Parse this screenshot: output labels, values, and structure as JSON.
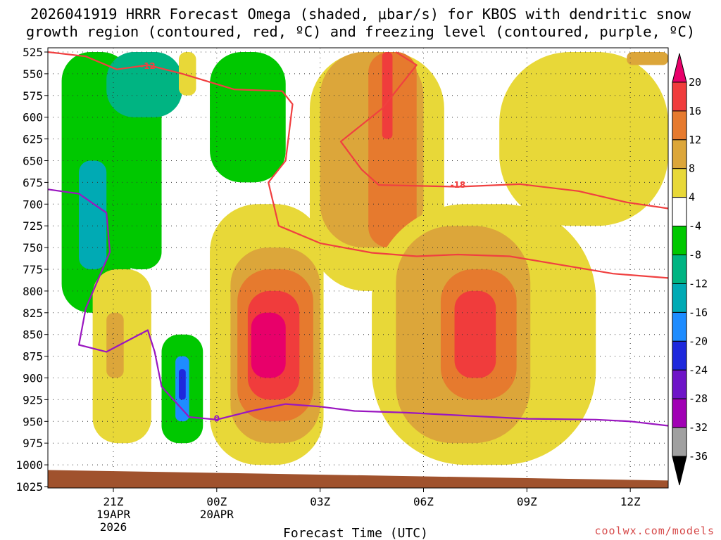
{
  "chart_data": {
    "type": "heatmap",
    "title_line1": "2026041919 HRRR Forecast Omega (shaded, μbar/s) for KBOS with dendritic snow",
    "title_line2": "growth region (contoured, red, ºC) and freezing level (contoured, purple, ºC)",
    "xlabel": "Forecast Time (UTC)",
    "credit": "coolwx.com/models",
    "y_levels_hpa": [
      525,
      550,
      575,
      600,
      625,
      650,
      675,
      700,
      725,
      750,
      775,
      800,
      825,
      850,
      875,
      900,
      925,
      950,
      975,
      1000,
      1025
    ],
    "x_range_hours": [
      -4.9,
      13.1
    ],
    "x_ticks": [
      {
        "hour": -3,
        "label": "21Z",
        "sub1": "19APR",
        "sub2": "2026"
      },
      {
        "hour": 0,
        "label": "00Z",
        "sub1": "20APR",
        "sub2": ""
      },
      {
        "hour": 3,
        "label": "03Z",
        "sub1": "",
        "sub2": ""
      },
      {
        "hour": 6,
        "label": "06Z",
        "sub1": "",
        "sub2": ""
      },
      {
        "hour": 9,
        "label": "09Z",
        "sub1": "",
        "sub2": ""
      },
      {
        "hour": 12,
        "label": "12Z",
        "sub1": "",
        "sub2": ""
      }
    ],
    "colorbar": {
      "labels": [
        "20",
        "16",
        "12",
        "8",
        "4",
        "-4",
        "-8",
        "-12",
        "-16",
        "-20",
        "-24",
        "-28",
        "-32",
        "-36"
      ],
      "colors": [
        "#e8006a",
        "#f03c3c",
        "#e67a2e",
        "#dca63a",
        "#e8d838",
        "#ffffff",
        "#00c800",
        "#00b482",
        "#00aab4",
        "#1e8cff",
        "#1e28dc",
        "#6e14c8",
        "#a000b4",
        "#a0a0a0",
        "#000000"
      ]
    },
    "omega_regions": [
      {
        "color": "#00c800",
        "hours": [
          -4.5,
          -2.5
        ],
        "hpa": [
          525,
          825
        ]
      },
      {
        "color": "#00c800",
        "hours": [
          -2.8,
          -1.6
        ],
        "hpa": [
          525,
          775
        ]
      },
      {
        "color": "#00c800",
        "hours": [
          -0.2,
          2.0
        ],
        "hpa": [
          525,
          675
        ]
      },
      {
        "color": "#00b482",
        "hours": [
          -3.2,
          -1.0
        ],
        "hpa": [
          525,
          600
        ]
      },
      {
        "color": "#00aab4",
        "hours": [
          -4.0,
          -3.2
        ],
        "hpa": [
          650,
          775
        ]
      },
      {
        "color": "#e8d838",
        "hours": [
          -0.2,
          3.1
        ],
        "hpa": [
          700,
          1000
        ]
      },
      {
        "color": "#dca63a",
        "hours": [
          0.4,
          3.0
        ],
        "hpa": [
          750,
          975
        ]
      },
      {
        "color": "#e67a2e",
        "hours": [
          0.6,
          2.8
        ],
        "hpa": [
          775,
          950
        ]
      },
      {
        "color": "#f03c3c",
        "hours": [
          0.9,
          2.4
        ],
        "hpa": [
          800,
          925
        ]
      },
      {
        "color": "#e8006a",
        "hours": [
          1.0,
          2.0
        ],
        "hpa": [
          825,
          900
        ]
      },
      {
        "color": "#e8d838",
        "hours": [
          2.7,
          6.6
        ],
        "hpa": [
          525,
          800
        ]
      },
      {
        "color": "#dca63a",
        "hours": [
          3.0,
          6.0
        ],
        "hpa": [
          525,
          750
        ]
      },
      {
        "color": "#e67a2e",
        "hours": [
          4.4,
          5.8
        ],
        "hpa": [
          525,
          750
        ]
      },
      {
        "color": "#f03c3c",
        "hours": [
          4.8,
          5.1
        ],
        "hpa": [
          525,
          625
        ]
      },
      {
        "color": "#e8d838",
        "hours": [
          4.5,
          11.0
        ],
        "hpa": [
          700,
          1000
        ]
      },
      {
        "color": "#dca63a",
        "hours": [
          5.2,
          9.1
        ],
        "hpa": [
          725,
          975
        ]
      },
      {
        "color": "#e67a2e",
        "hours": [
          6.5,
          8.7
        ],
        "hpa": [
          775,
          925
        ]
      },
      {
        "color": "#f03c3c",
        "hours": [
          6.9,
          8.1
        ],
        "hpa": [
          800,
          900
        ]
      },
      {
        "color": "#e8d838",
        "hours": [
          8.2,
          13.1
        ],
        "hpa": [
          525,
          725
        ]
      },
      {
        "color": "#dca63a",
        "hours": [
          11.9,
          13.1
        ],
        "hpa": [
          525,
          540
        ]
      },
      {
        "color": "#e8d838",
        "hours": [
          -3.6,
          -1.9
        ],
        "hpa": [
          775,
          975
        ]
      },
      {
        "color": "#dca63a",
        "hours": [
          -3.2,
          -2.7
        ],
        "hpa": [
          825,
          900
        ]
      },
      {
        "color": "#00c800",
        "hours": [
          -1.6,
          -0.4
        ],
        "hpa": [
          850,
          975
        ]
      },
      {
        "color": "#1e8cff",
        "hours": [
          -1.2,
          -0.8
        ],
        "hpa": [
          875,
          950
        ]
      },
      {
        "color": "#1e28dc",
        "hours": [
          -1.1,
          -0.9
        ],
        "hpa": [
          890,
          925
        ]
      },
      {
        "color": "#e8d838",
        "hours": [
          -1.1,
          -0.6
        ],
        "hpa": [
          525,
          575
        ]
      }
    ],
    "contours": [
      {
        "name": "dgz-minus12-upper",
        "color": "#f04040",
        "label": "-12",
        "label_hour": -2.0,
        "label_hpa": 541,
        "points": [
          [
            -4.9,
            525
          ],
          [
            -3.8,
            530
          ],
          [
            -2.9,
            545
          ],
          [
            -2.0,
            540
          ],
          [
            -1.0,
            550
          ],
          [
            0.5,
            568
          ],
          [
            1.9,
            570
          ],
          [
            2.2,
            585
          ],
          [
            2.0,
            650
          ],
          [
            1.5,
            675
          ],
          [
            1.8,
            725
          ],
          [
            3.0,
            745
          ],
          [
            4.5,
            756
          ],
          [
            5.8,
            760
          ],
          [
            7.0,
            758
          ],
          [
            8.5,
            760
          ],
          [
            10.0,
            770
          ],
          [
            11.5,
            780
          ],
          [
            13.1,
            785
          ]
        ]
      },
      {
        "name": "dgz-minus18",
        "color": "#f04040",
        "label": "-18",
        "label_hour": 7.0,
        "label_hpa": 678,
        "points": [
          [
            5.2,
            525
          ],
          [
            5.8,
            540
          ],
          [
            4.8,
            590
          ],
          [
            3.6,
            628
          ],
          [
            4.2,
            660
          ],
          [
            4.7,
            678
          ],
          [
            7.0,
            680
          ],
          [
            8.8,
            677
          ],
          [
            10.5,
            685
          ],
          [
            11.9,
            698
          ],
          [
            13.1,
            705
          ]
        ]
      },
      {
        "name": "freezing-level-0c",
        "color": "#9a16c0",
        "label": "0",
        "label_hour": 0.0,
        "label_hpa": 947,
        "points": [
          [
            -4.9,
            683
          ],
          [
            -4.0,
            688
          ],
          [
            -3.2,
            710
          ],
          [
            -3.1,
            755
          ],
          [
            -3.8,
            820
          ],
          [
            -4.0,
            862
          ],
          [
            -3.2,
            870
          ],
          [
            -2.0,
            845
          ],
          [
            -1.8,
            870
          ],
          [
            -1.6,
            910
          ],
          [
            -0.8,
            945
          ],
          [
            0.0,
            948
          ],
          [
            1.0,
            938
          ],
          [
            2.0,
            930
          ],
          [
            3.0,
            933
          ],
          [
            4.0,
            938
          ],
          [
            5.5,
            940
          ],
          [
            7.0,
            943
          ],
          [
            9.0,
            947
          ],
          [
            11.0,
            948
          ],
          [
            12.0,
            950
          ],
          [
            13.1,
            955
          ]
        ]
      }
    ],
    "terrain": {
      "color": "#a0522d",
      "surface_hpa_start": 1006,
      "surface_hpa_end": 1018
    }
  }
}
